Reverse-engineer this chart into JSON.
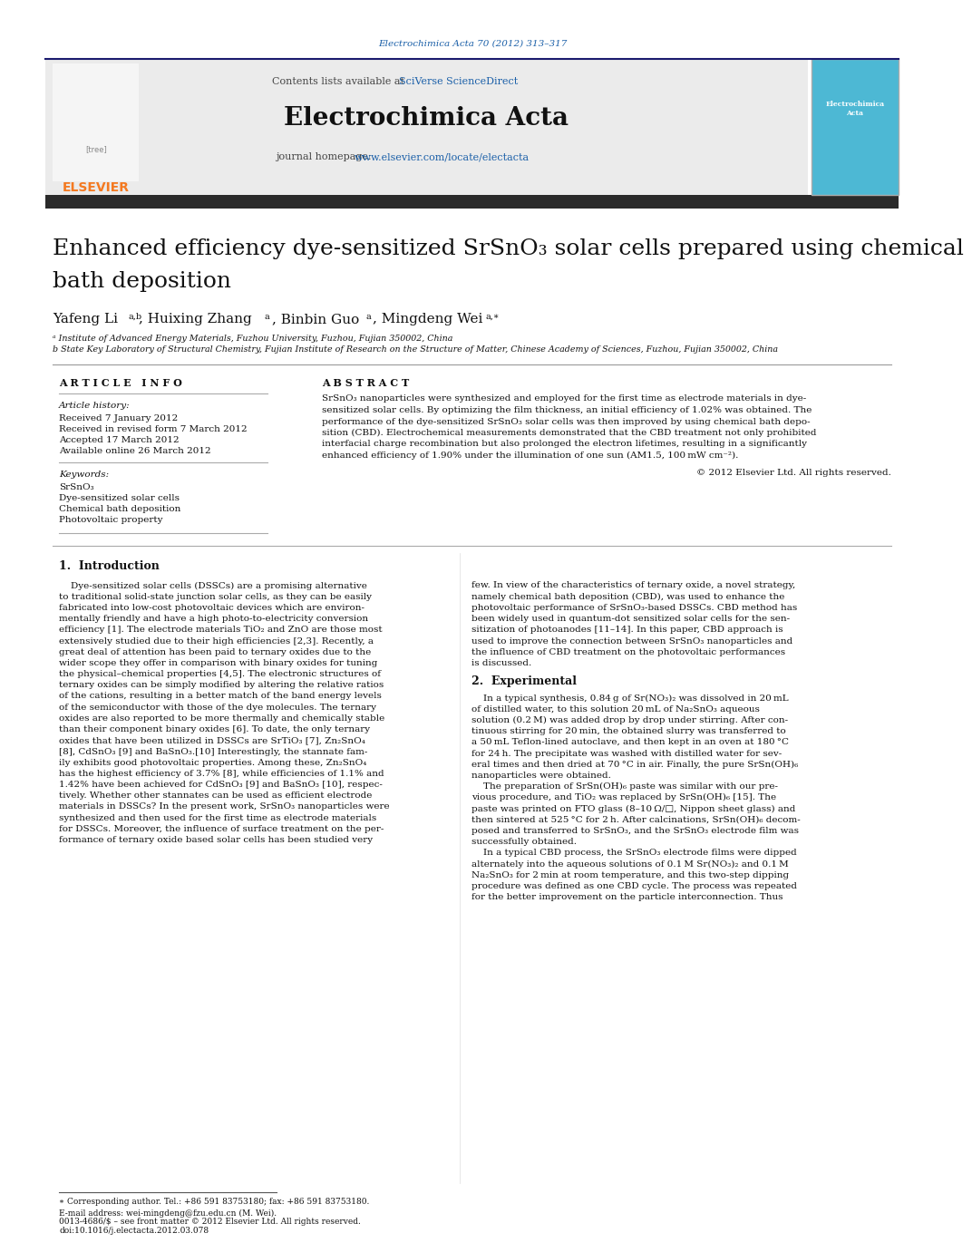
{
  "page_bg": "#ffffff",
  "top_link_color": "#1a5fa8",
  "top_link_text": "Electrochimica Acta 70 (2012) 313–317",
  "header_bg": "#ebebeb",
  "header_journal_name": "Electrochimica Acta",
  "header_contents_text": "Contents lists available at ",
  "header_sciverse": "SciVerse ScienceDirect",
  "header_homepage_text": "journal homepage: ",
  "header_homepage_link": "www.elsevier.com/locate/electacta",
  "dark_bar_color": "#2a2a2a",
  "title_line1": "Enhanced efficiency dye-sensitized SrSnO₃ solar cells prepared using chemical",
  "title_line2": "bath deposition",
  "elsevier_color": "#f47920",
  "link_color": "#1a5fa8",
  "footnote_star": "∗ Corresponding author. Tel.: +86 591 83753180; fax: +86 591 83753180.",
  "footnote_email": "E-mail address: wei-mingdeng@fzu.edu.cn (M. Wei).",
  "footnote_issn": "0013-4686/$ – see front matter © 2012 Elsevier Ltd. All rights reserved.",
  "footnote_doi": "doi:10.1016/j.electacta.2012.03.078"
}
